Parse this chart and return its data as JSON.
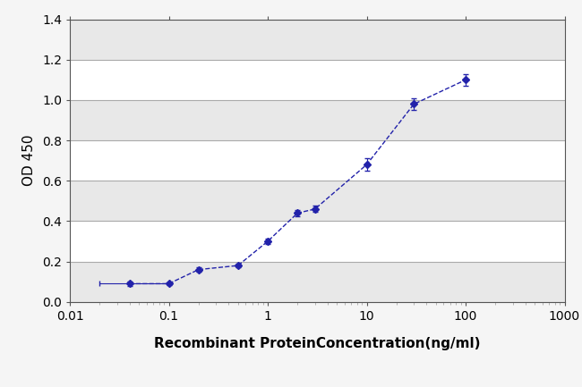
{
  "x": [
    0.04,
    0.1,
    0.2,
    0.5,
    1.0,
    2.0,
    3.0,
    10.0,
    30.0,
    100.0
  ],
  "y": [
    0.09,
    0.09,
    0.16,
    0.18,
    0.3,
    0.44,
    0.46,
    0.68,
    0.98,
    1.1
  ],
  "yerr": [
    0.01,
    0.005,
    0.01,
    0.01,
    0.015,
    0.015,
    0.015,
    0.03,
    0.03,
    0.03
  ],
  "xerr": [
    [
      0.02,
      0.0,
      0.0,
      0.0,
      0.0,
      0.0,
      0.0,
      0.0,
      0.0,
      0.0
    ],
    [
      0.06,
      0.0,
      0.0,
      0.0,
      0.0,
      0.0,
      0.0,
      0.0,
      0.0,
      0.0
    ]
  ],
  "line_color": "#2222aa",
  "marker": "D",
  "marker_size": 4,
  "xlabel": "Recombinant ProteinConcentration(ng/ml)",
  "ylabel": "OD 450",
  "xlim_log": [
    0.01,
    1000
  ],
  "ylim": [
    0,
    1.4
  ],
  "yticks": [
    0,
    0.2,
    0.4,
    0.6,
    0.8,
    1.0,
    1.2,
    1.4
  ],
  "xticks": [
    0.01,
    0.1,
    1,
    10,
    100,
    1000
  ],
  "xtick_labels": [
    "0.01",
    "0.1",
    "1",
    "10",
    "100",
    "1000"
  ],
  "plot_bg": "#ffffff",
  "fig_bg": "#f5f5f5",
  "grid_color": "#aaaaaa",
  "band_color": "#e8e8e8",
  "axis_fontsize": 11,
  "tick_fontsize": 10
}
